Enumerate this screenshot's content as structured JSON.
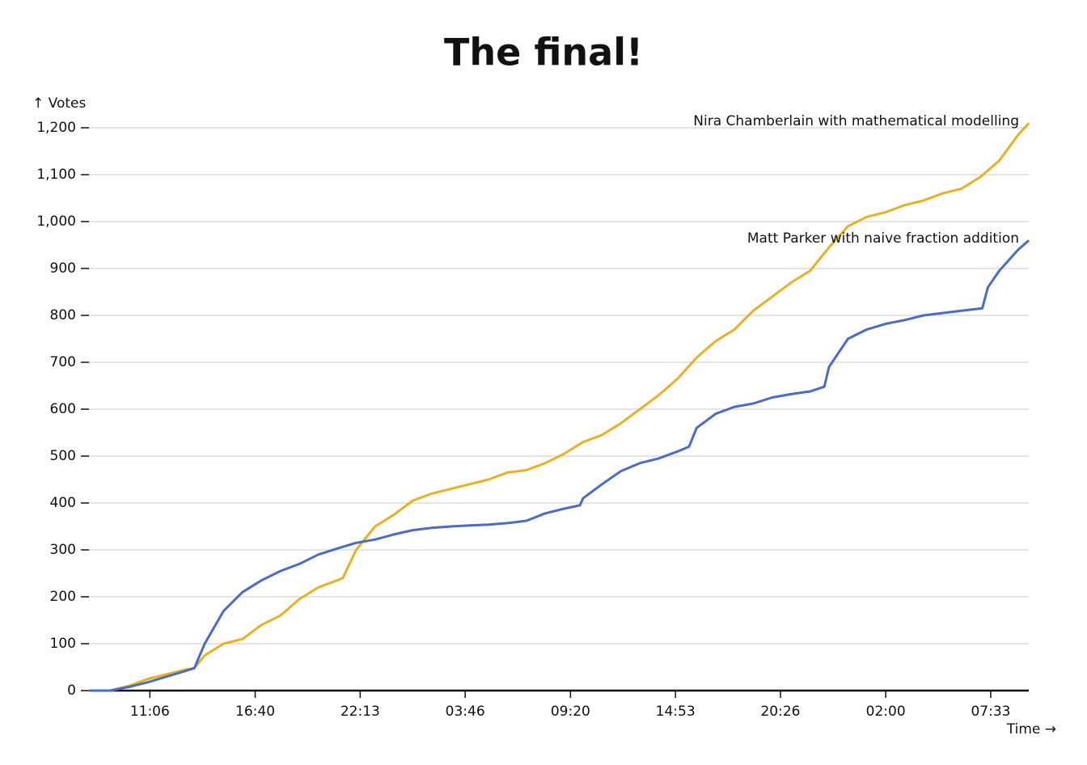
{
  "chart_data": {
    "type": "line",
    "title": "The final!",
    "y_label": "↑ Votes",
    "x_label": "Time →",
    "xlim": [
      7.88,
      57.56
    ],
    "xticks": [
      {
        "value": 11.1,
        "label": "11:06"
      },
      {
        "value": 16.6667,
        "label": "16:40"
      },
      {
        "value": 22.2167,
        "label": "22:13"
      },
      {
        "value": 27.7667,
        "label": "03:46"
      },
      {
        "value": 33.3333,
        "label": "09:20"
      },
      {
        "value": 38.8833,
        "label": "14:53"
      },
      {
        "value": 44.4333,
        "label": "20:26"
      },
      {
        "value": 50,
        "label": "02:00"
      },
      {
        "value": 55.55,
        "label": "07:33"
      }
    ],
    "ylim": [
      0,
      1200
    ],
    "yticks": [
      0,
      100,
      200,
      300,
      400,
      500,
      600,
      700,
      800,
      900,
      {
        "value": 1000,
        "label": "1,000"
      },
      {
        "value": 1100,
        "label": "1,100"
      },
      {
        "value": 1200,
        "label": "1,200"
      }
    ],
    "grid": true,
    "series": [
      {
        "name": "Nira Chamberlain with mathematical modelling",
        "color": "#e8b023",
        "x": [
          7.88,
          9,
          10,
          11,
          12,
          13,
          13.45,
          14,
          15,
          16,
          17,
          18,
          19,
          20,
          21,
          21.3,
          22,
          23,
          24,
          25,
          26,
          27,
          28,
          29,
          30,
          31,
          32,
          33,
          34,
          35,
          36,
          37,
          38,
          39,
          40,
          41,
          42,
          43,
          44,
          45,
          46,
          47,
          48,
          49,
          50,
          51,
          52,
          53,
          54,
          55,
          56,
          57,
          57.56
        ],
        "values": [
          0,
          0,
          10,
          25,
          35,
          45,
          48,
          75,
          100,
          110,
          140,
          160,
          195,
          220,
          235,
          240,
          300,
          350,
          375,
          405,
          420,
          430,
          440,
          450,
          465,
          470,
          485,
          505,
          530,
          545,
          570,
          600,
          630,
          665,
          710,
          745,
          770,
          810,
          840,
          870,
          895,
          945,
          990,
          1010,
          1020,
          1035,
          1045,
          1060,
          1070,
          1095,
          1130,
          1185,
          1210
        ]
      },
      {
        "name": "Matt Parker with naive fraction addition",
        "color": "#4a6bc8",
        "x": [
          7.88,
          9,
          10,
          11,
          12,
          13,
          13.45,
          14,
          15,
          16,
          17,
          18,
          19,
          20,
          21,
          22,
          23,
          24,
          25,
          26,
          27,
          28,
          29,
          30,
          31,
          32,
          33,
          33.83,
          34,
          35,
          36,
          37,
          38,
          39,
          39.6,
          40,
          41,
          42,
          43,
          44,
          45,
          46,
          46.75,
          47,
          48,
          49,
          50,
          51,
          52,
          53,
          54,
          55.1,
          55.4,
          56,
          57,
          57.56
        ],
        "values": [
          0,
          0,
          8,
          18,
          30,
          42,
          48,
          100,
          170,
          210,
          235,
          255,
          270,
          290,
          303,
          315,
          322,
          333,
          342,
          347,
          350,
          352,
          354,
          357,
          362,
          378,
          388,
          395,
          410,
          440,
          468,
          485,
          495,
          510,
          520,
          560,
          590,
          605,
          612,
          625,
          632,
          638,
          648,
          690,
          750,
          770,
          782,
          790,
          800,
          805,
          810,
          815,
          860,
          895,
          940,
          960
        ]
      }
    ]
  }
}
